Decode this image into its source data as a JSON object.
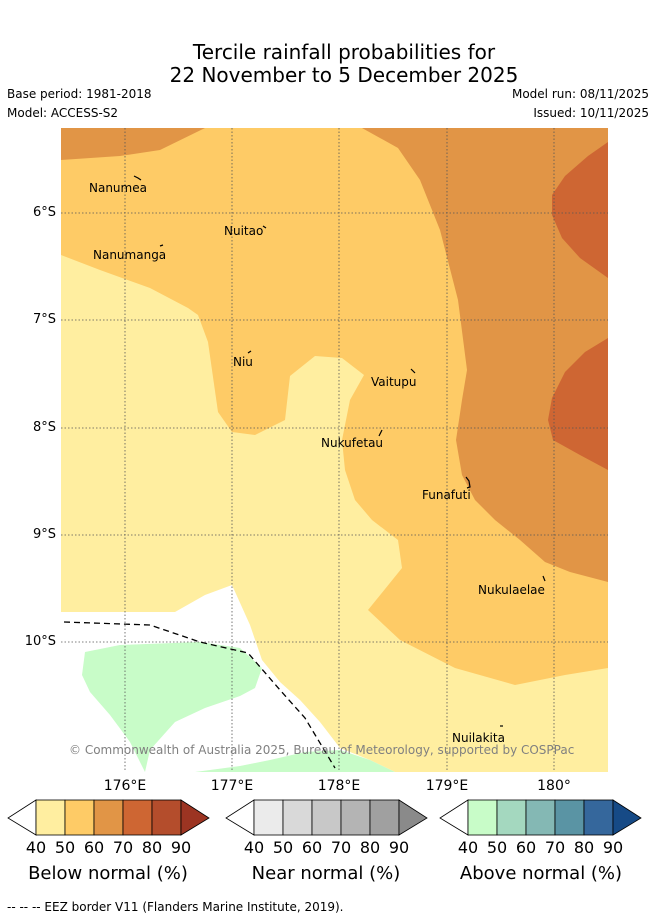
{
  "title": {
    "line1": "Tercile rainfall probabilities for",
    "line2": "22 November to 5 December 2025"
  },
  "meta": {
    "base_period": "Base period: 1981-2018",
    "model": "Model: ACCESS-S2",
    "model_run": "Model run: 08/11/2025",
    "issued": "Issued: 10/11/2025"
  },
  "map": {
    "latitude_labels": [
      "6°S",
      "7°S",
      "8°S",
      "9°S",
      "10°S"
    ],
    "longitude_labels": [
      "176°E",
      "177°E",
      "178°E",
      "179°E",
      "180°"
    ],
    "islands": [
      "Nanumea",
      "Nuitao",
      "Nanumanga",
      "Niu",
      "Vaitupu",
      "Nukufetau",
      "Funafuti",
      "Nukulaelae",
      "Nuilakita"
    ],
    "copyright": "© Commonwealth of Australia 2025, Bureau of Meteorology, supported by COSPPac",
    "colors": {
      "below_40": "#ffeea0",
      "below_50": "#fecb66",
      "below_60": "#e19546",
      "below_70": "#ce6633",
      "above_40": "#c8fcc8",
      "grid": "#555555"
    }
  },
  "legend": {
    "ticks": [
      "40",
      "50",
      "60",
      "70",
      "80",
      "90"
    ],
    "groups": [
      {
        "title": "Below normal (%)",
        "colors": [
          "#ffeea0",
          "#fecb66",
          "#e19546",
          "#ce6633",
          "#b44d2c",
          "#9c3422"
        ]
      },
      {
        "title": "Near normal (%)",
        "colors": [
          "#ebebeb",
          "#d9d9d9",
          "#c8c8c8",
          "#b4b4b4",
          "#a0a0a0",
          "#8a8a8a"
        ]
      },
      {
        "title": "Above normal (%)",
        "colors": [
          "#c8fcc8",
          "#a4d8bf",
          "#84b8b4",
          "#5a94a4",
          "#35679c",
          "#164a86"
        ]
      }
    ]
  },
  "footnote": "-- -- -- EEZ border V11 (Flanders Marine Institute, 2019)."
}
